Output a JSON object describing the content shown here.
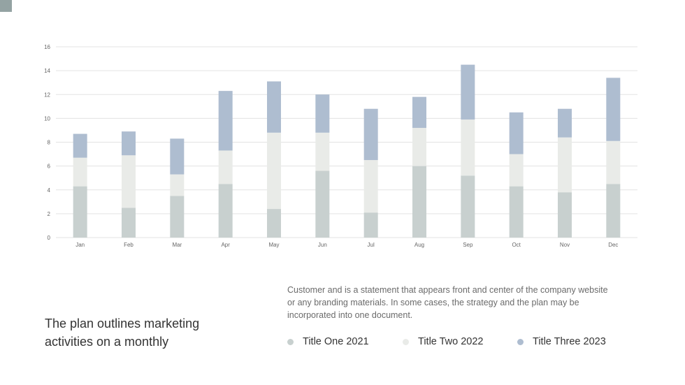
{
  "chart_data": {
    "type": "bar",
    "stacked": true,
    "categories": [
      "Jan",
      "Feb",
      "Mar",
      "Apr",
      "May",
      "Jun",
      "Jul",
      "Aug",
      "Sep",
      "Oct",
      "Nov",
      "Dec"
    ],
    "series": [
      {
        "name": "Title One 2021",
        "color": "#c8d0cf",
        "values": [
          4.3,
          2.5,
          3.5,
          4.5,
          2.4,
          5.6,
          2.1,
          6.0,
          5.2,
          4.3,
          3.8,
          4.5
        ]
      },
      {
        "name": "Title Two 2022",
        "color": "#e9ebe8",
        "values": [
          2.4,
          4.4,
          1.8,
          2.8,
          6.4,
          3.2,
          4.4,
          3.2,
          4.7,
          2.7,
          4.6,
          3.6
        ]
      },
      {
        "name": "Title Three 2023",
        "color": "#aebdd0",
        "values": [
          2.0,
          2.0,
          3.0,
          5.0,
          4.3,
          3.2,
          4.3,
          2.6,
          4.6,
          3.5,
          2.4,
          5.3
        ]
      }
    ],
    "ylim": [
      0,
      16
    ],
    "yticks": [
      "0",
      "2",
      "4",
      "6",
      "8",
      "10",
      "12",
      "14",
      "16"
    ],
    "grid": true,
    "legend_placement": "bottom-right"
  },
  "text": {
    "description": "Customer and is a statement that appears front and center of the company website or any branding materials. In some cases, the strategy and the plan may be incorporated into one document.",
    "headline": "The plan outlines marketing activities on a monthly"
  },
  "colors": {
    "corner_accent": "#94a3a3"
  }
}
